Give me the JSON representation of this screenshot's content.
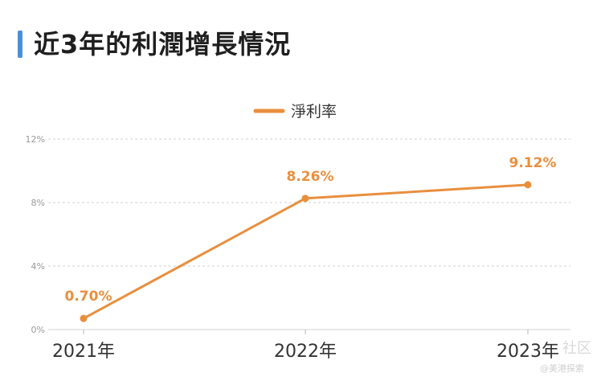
{
  "header": {
    "title": "近3年的利潤增長情況"
  },
  "colors": {
    "accent_bar": "#4a90d9",
    "series": "#e88f3e",
    "grid": "#d0d0d0"
  },
  "chart_data": {
    "type": "line",
    "title": "近3年的利潤增長情況",
    "categories": [
      "2021年",
      "2022年",
      "2023年"
    ],
    "series": [
      {
        "name": "淨利率",
        "values": [
          0.7,
          8.26,
          9.12
        ],
        "labels": [
          "0.70%",
          "8.26%",
          "9.12%"
        ]
      }
    ],
    "yticks": [
      "0%",
      "4%",
      "8%",
      "12%"
    ],
    "ytick_values": [
      0,
      4,
      8,
      12
    ],
    "ylim": [
      0,
      12
    ],
    "xlabel": "",
    "ylabel": "",
    "grid": true,
    "legend": "top-center"
  },
  "watermark": {
    "line1": "社区",
    "line2": "@美港探索"
  }
}
